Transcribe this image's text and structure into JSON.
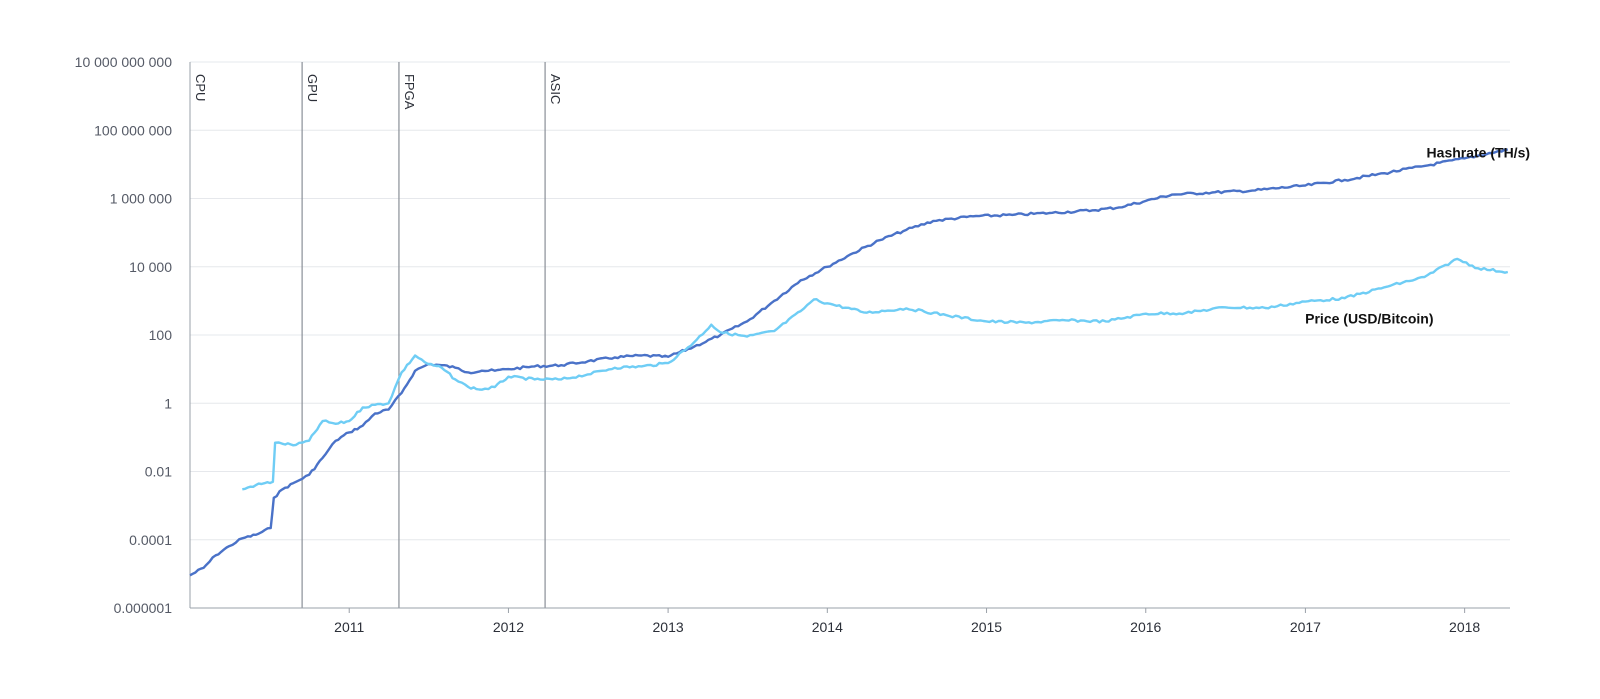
{
  "chart_data": {
    "type": "line",
    "title": "",
    "xlabel": "",
    "ylabel": "",
    "y_scale": "log",
    "ylim": [
      1e-06,
      10000000000
    ],
    "xlim": [
      "2010-01-01",
      "2018-04-15"
    ],
    "grid": true,
    "y_ticks": [
      {
        "value": 1e-06,
        "label": "0.000001"
      },
      {
        "value": 0.0001,
        "label": "0.0001"
      },
      {
        "value": 0.01,
        "label": "0.01"
      },
      {
        "value": 1,
        "label": "1"
      },
      {
        "value": 100,
        "label": "100"
      },
      {
        "value": 10000,
        "label": "10 000"
      },
      {
        "value": 1000000,
        "label": "1 000 000"
      },
      {
        "value": 100000000,
        "label": "100 000 000"
      },
      {
        "value": 10000000000,
        "label": "10 000 000 000"
      }
    ],
    "x_ticks": [
      {
        "value": "2011-01-01",
        "label": "2011"
      },
      {
        "value": "2012-01-01",
        "label": "2012"
      },
      {
        "value": "2013-01-01",
        "label": "2013"
      },
      {
        "value": "2014-01-01",
        "label": "2014"
      },
      {
        "value": "2015-01-01",
        "label": "2015"
      },
      {
        "value": "2016-01-01",
        "label": "2016"
      },
      {
        "value": "2017-01-01",
        "label": "2017"
      },
      {
        "value": "2018-01-01",
        "label": "2018"
      }
    ],
    "eras": [
      {
        "label": "CPU",
        "date": "2010-01-01"
      },
      {
        "label": "GPU",
        "date": "2010-09-15"
      },
      {
        "label": "FPGA",
        "date": "2011-04-25"
      },
      {
        "label": "ASIC",
        "date": "2012-03-25"
      }
    ],
    "series": [
      {
        "name": "Hashrate (TH/s)",
        "color": "#4a72c8",
        "label_at": "2018-01-10",
        "points": [
          [
            "2010-01-01",
            9.1e-06
          ],
          [
            "2010-02-01",
            1.5e-05
          ],
          [
            "2010-03-01",
            3.5e-05
          ],
          [
            "2010-04-01",
            6.5e-05
          ],
          [
            "2010-05-01",
            0.00011
          ],
          [
            "2010-06-01",
            0.00014
          ],
          [
            "2010-07-05",
            0.00022
          ],
          [
            "2010-07-12",
            0.0017
          ],
          [
            "2010-08-01",
            0.003
          ],
          [
            "2010-09-01",
            0.005
          ],
          [
            "2010-10-01",
            0.008
          ],
          [
            "2010-11-01",
            0.025
          ],
          [
            "2010-12-01",
            0.08
          ],
          [
            "2011-01-01",
            0.14
          ],
          [
            "2011-02-01",
            0.22
          ],
          [
            "2011-03-01",
            0.5
          ],
          [
            "2011-04-01",
            0.65
          ],
          [
            "2011-05-01",
            2
          ],
          [
            "2011-06-01",
            9
          ],
          [
            "2011-07-01",
            14
          ],
          [
            "2011-08-01",
            13
          ],
          [
            "2011-09-01",
            11
          ],
          [
            "2011-10-01",
            8
          ],
          [
            "2011-11-01",
            9
          ],
          [
            "2011-12-01",
            9
          ],
          [
            "2012-01-01",
            10
          ],
          [
            "2012-03-01",
            12
          ],
          [
            "2012-05-01",
            13
          ],
          [
            "2012-07-01",
            17
          ],
          [
            "2012-09-01",
            22
          ],
          [
            "2012-11-01",
            25
          ],
          [
            "2013-01-01",
            23
          ],
          [
            "2013-03-01",
            45
          ],
          [
            "2013-05-01",
            100
          ],
          [
            "2013-07-01",
            250
          ],
          [
            "2013-09-01",
            1000
          ],
          [
            "2013-11-01",
            4000
          ],
          [
            "2014-01-01",
            10000
          ],
          [
            "2014-03-01",
            25000
          ],
          [
            "2014-05-01",
            60000
          ],
          [
            "2014-07-01",
            120000
          ],
          [
            "2014-09-01",
            220000
          ],
          [
            "2014-12-01",
            300000
          ],
          [
            "2015-03-01",
            330000
          ],
          [
            "2015-06-01",
            380000
          ],
          [
            "2015-09-01",
            450000
          ],
          [
            "2015-11-01",
            550000
          ],
          [
            "2016-01-01",
            850000
          ],
          [
            "2016-03-01",
            1300000
          ],
          [
            "2016-06-01",
            1500000
          ],
          [
            "2016-09-01",
            1700000
          ],
          [
            "2017-01-01",
            2400000
          ],
          [
            "2017-04-01",
            3500000
          ],
          [
            "2017-07-01",
            5500000
          ],
          [
            "2017-10-01",
            9000000
          ],
          [
            "2018-01-01",
            15000000
          ],
          [
            "2018-04-10",
            27000000
          ]
        ]
      },
      {
        "name": "Price (USD/Bitcoin)",
        "color": "#6fcdf5",
        "label_at": "2017-03-01",
        "points": [
          [
            "2010-05-01",
            0.003
          ],
          [
            "2010-06-01",
            0.004
          ],
          [
            "2010-07-10",
            0.005
          ],
          [
            "2010-07-15",
            0.07
          ],
          [
            "2010-08-01",
            0.065
          ],
          [
            "2010-09-01",
            0.06
          ],
          [
            "2010-10-01",
            0.08
          ],
          [
            "2010-11-01",
            0.3
          ],
          [
            "2010-12-01",
            0.25
          ],
          [
            "2011-01-01",
            0.3
          ],
          [
            "2011-02-01",
            0.75
          ],
          [
            "2011-03-01",
            0.9
          ],
          [
            "2011-04-01",
            1
          ],
          [
            "2011-05-01",
            8
          ],
          [
            "2011-06-01",
            25
          ],
          [
            "2011-07-01",
            14
          ],
          [
            "2011-08-01",
            11
          ],
          [
            "2011-09-01",
            5
          ],
          [
            "2011-10-01",
            3
          ],
          [
            "2011-11-01",
            2.5
          ],
          [
            "2011-12-01",
            3
          ],
          [
            "2012-01-01",
            6
          ],
          [
            "2012-03-01",
            5
          ],
          [
            "2012-05-01",
            5
          ],
          [
            "2012-07-01",
            7
          ],
          [
            "2012-09-01",
            11
          ],
          [
            "2012-11-01",
            12
          ],
          [
            "2013-01-01",
            15
          ],
          [
            "2013-03-01",
            60
          ],
          [
            "2013-04-10",
            200
          ],
          [
            "2013-05-01",
            120
          ],
          [
            "2013-07-01",
            90
          ],
          [
            "2013-09-01",
            130
          ],
          [
            "2013-11-01",
            500
          ],
          [
            "2013-12-01",
            1100
          ],
          [
            "2014-01-01",
            850
          ],
          [
            "2014-04-01",
            450
          ],
          [
            "2014-07-01",
            600
          ],
          [
            "2014-10-01",
            380
          ],
          [
            "2015-01-01",
            250
          ],
          [
            "2015-04-01",
            230
          ],
          [
            "2015-07-01",
            270
          ],
          [
            "2015-10-01",
            250
          ],
          [
            "2016-01-01",
            420
          ],
          [
            "2016-04-01",
            440
          ],
          [
            "2016-07-01",
            650
          ],
          [
            "2016-10-01",
            620
          ],
          [
            "2017-01-01",
            950
          ],
          [
            "2017-04-01",
            1200
          ],
          [
            "2017-07-01",
            2500
          ],
          [
            "2017-10-01",
            5000
          ],
          [
            "2017-12-15",
            17000
          ],
          [
            "2018-02-01",
            9000
          ],
          [
            "2018-04-10",
            7000
          ]
        ]
      }
    ]
  }
}
